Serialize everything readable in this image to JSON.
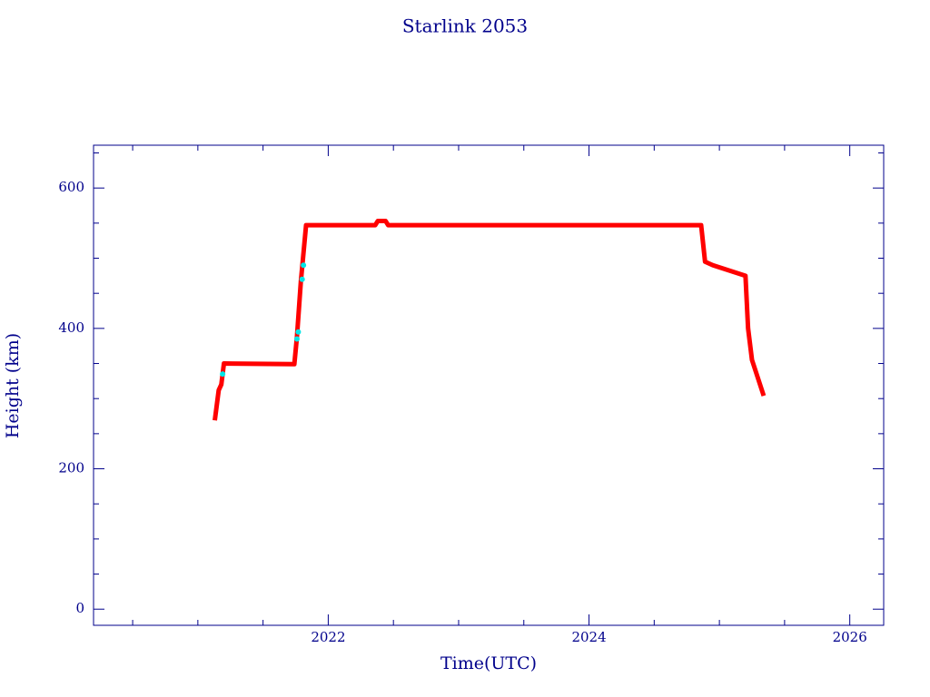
{
  "chart_data": {
    "type": "line",
    "title": "Starlink 2053",
    "x_label": "Time(UTC)",
    "y_label": "Height (km)",
    "series": [
      {
        "color": "#ff0000",
        "x": [
          2021.13,
          2021.16,
          2021.18,
          2021.2,
          2021.74,
          2021.76,
          2021.79,
          2021.83,
          2022.36,
          2022.38,
          2022.44,
          2022.46,
          2024.86,
          2024.89,
          2024.95,
          2025.2,
          2025.22,
          2025.25,
          2025.34
        ],
        "values": [
          269,
          312,
          320,
          350,
          349,
          388,
          467,
          547,
          547,
          553,
          553,
          547,
          547,
          495,
          490,
          475,
          400,
          355,
          304
        ]
      },
      {
        "color": "#00e5e5",
        "x": [
          2021.19,
          2021.76,
          2021.77,
          2021.8,
          2021.81
        ],
        "values": [
          335,
          385,
          395,
          470,
          490
        ]
      }
    ],
    "xlim": [
      2020.2,
      2026.26
    ],
    "ylim": [
      -23,
      661
    ],
    "xticks": [
      2022,
      2024,
      2026
    ],
    "yticks": [
      0,
      200,
      400,
      600
    ],
    "xminorticks": [
      2020.5,
      2021,
      2021.5,
      2022.5,
      2023,
      2023.5,
      2024.5,
      2025,
      2025.5
    ],
    "yminorticks": [
      50,
      100,
      150,
      250,
      300,
      350,
      450,
      500,
      550,
      650
    ],
    "axis_color": "#00008b"
  }
}
